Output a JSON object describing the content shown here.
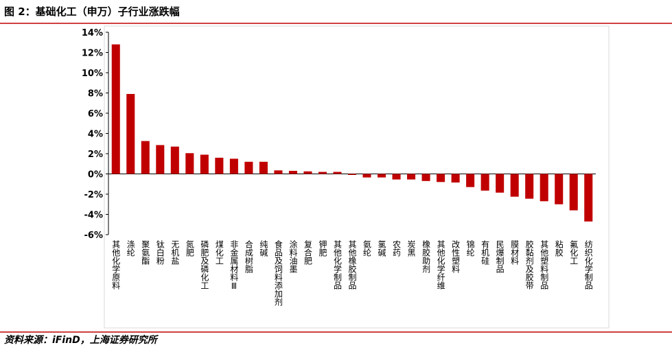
{
  "chart_data": {
    "type": "bar",
    "title": "图 2：基础化工（申万）子行业涨跌幅",
    "source": "资料来源：iFinD，上海证券研究所",
    "categories": [
      "其他化学原料",
      "涤纶",
      "聚氨酯",
      "钛白粉",
      "无机盐",
      "氮肥",
      "磷肥及磷化工",
      "煤化工",
      "非金属材料Ⅲ",
      "合成树脂",
      "纯碱",
      "食品及饲料添加剂",
      "涂料油墨",
      "复合肥",
      "钾肥",
      "其他化学制品",
      "其他橡胶制品",
      "氨纶",
      "氯碱",
      "农药",
      "炭黑",
      "橡胶助剂",
      "其他化学纤维",
      "改性塑料",
      "锦纶",
      "有机硅",
      "民爆制品",
      "膜材料",
      "胶黏剂及胶带",
      "其他塑料制品",
      "粘胶",
      "氟化工",
      "纺织化学制品"
    ],
    "values": [
      12.8,
      7.9,
      3.25,
      2.85,
      2.7,
      2.05,
      1.9,
      1.6,
      1.5,
      1.2,
      1.2,
      0.35,
      0.3,
      0.25,
      0.2,
      0.2,
      -0.1,
      -0.35,
      -0.35,
      -0.55,
      -0.55,
      -0.7,
      -0.8,
      -0.85,
      -1.3,
      -1.65,
      -1.85,
      -2.25,
      -2.45,
      -2.7,
      -3.0,
      -3.6,
      -4.7
    ],
    "color": "#c00000",
    "ylim": [
      -6,
      14
    ],
    "yticks": [
      {
        "value": -6,
        "label": "-6%"
      },
      {
        "value": -4,
        "label": "-4%"
      },
      {
        "value": -2,
        "label": "-2%"
      },
      {
        "value": 0,
        "label": "0%"
      },
      {
        "value": 2,
        "label": "2%"
      },
      {
        "value": 4,
        "label": "4%"
      },
      {
        "value": 6,
        "label": "6%"
      },
      {
        "value": 8,
        "label": "8%"
      },
      {
        "value": 10,
        "label": "10%"
      },
      {
        "value": 12,
        "label": "12%"
      },
      {
        "value": 14,
        "label": "14%"
      }
    ],
    "grid": false
  }
}
